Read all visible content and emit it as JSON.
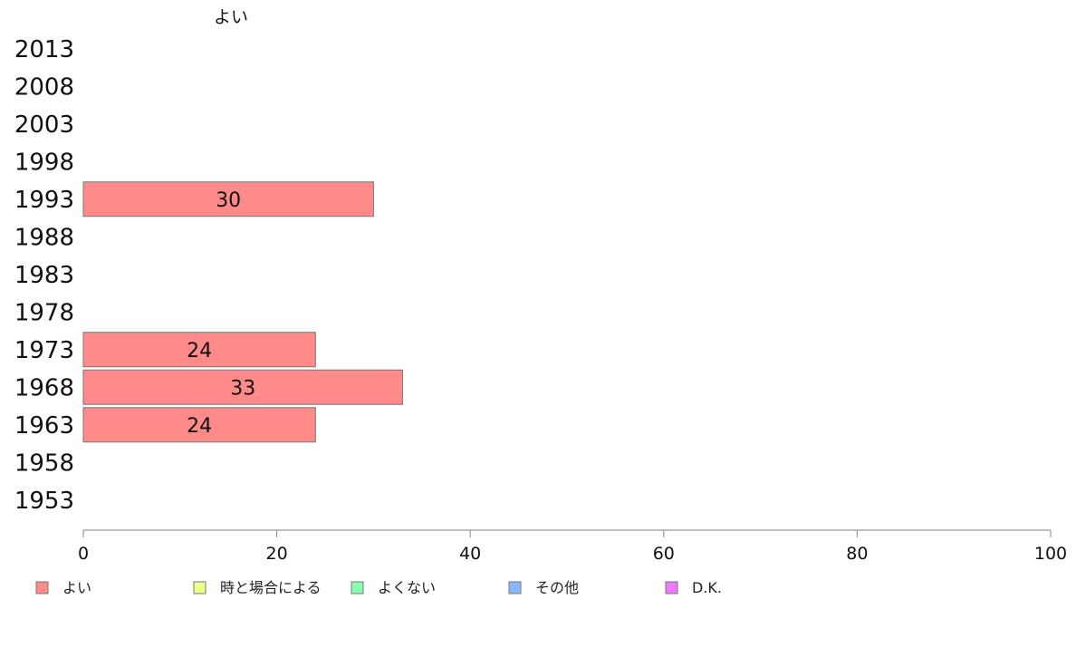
{
  "chart_data": {
    "type": "bar",
    "orientation": "horizontal",
    "stacked": true,
    "categories": [
      "2013",
      "2008",
      "2003",
      "1998",
      "1993",
      "1988",
      "1983",
      "1978",
      "1973",
      "1968",
      "1963",
      "1958",
      "1953"
    ],
    "series": [
      {
        "name": "よい",
        "values": [
          null,
          null,
          null,
          null,
          30,
          null,
          null,
          null,
          24,
          33,
          24,
          null,
          null
        ],
        "color": "#ff8a8a"
      },
      {
        "name": "時と場合による",
        "values": [
          null,
          null,
          null,
          null,
          null,
          null,
          null,
          null,
          null,
          null,
          null,
          null,
          null
        ],
        "color": "#eeff8a"
      },
      {
        "name": "よくない",
        "values": [
          null,
          null,
          null,
          null,
          null,
          null,
          null,
          null,
          null,
          null,
          null,
          null,
          null
        ],
        "color": "#8affb0"
      },
      {
        "name": "その他",
        "values": [
          null,
          null,
          null,
          null,
          null,
          null,
          null,
          null,
          null,
          null,
          null,
          null,
          null
        ],
        "color": "#8ab8ff"
      },
      {
        "name": "D.K.",
        "values": [
          null,
          null,
          null,
          null,
          null,
          null,
          null,
          null,
          null,
          null,
          null,
          null,
          null
        ],
        "color": "#ee7aff"
      }
    ],
    "column_header": "よい",
    "xlim": [
      0,
      100
    ],
    "xticks": [
      0,
      20,
      40,
      60,
      80,
      100
    ],
    "grid": false,
    "legend_position": "bottom"
  }
}
